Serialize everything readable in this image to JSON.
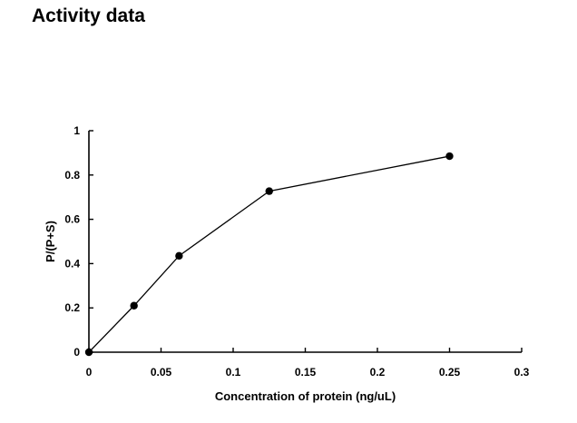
{
  "page": {
    "title": "Activity data"
  },
  "chart_data": {
    "type": "line",
    "xlabel": "Concentration of protein (ng/uL)",
    "ylabel": "P/(P+S)",
    "xlim": [
      0,
      0.3
    ],
    "ylim": [
      0,
      1
    ],
    "x_ticks": [
      "0",
      "0.05",
      "0.1",
      "0.15",
      "0.2",
      "0.25",
      "0.3"
    ],
    "y_ticks": [
      "0",
      "0.2",
      "0.4",
      "0.6",
      "0.8",
      "1"
    ],
    "grid": false,
    "legend": "none",
    "series": [
      {
        "x": [
          0,
          0.03125,
          0.0625,
          0.125,
          0.25
        ],
        "y": [
          0,
          0.21,
          0.435,
          0.727,
          0.885
        ],
        "color": "#000000",
        "marker": "circle"
      }
    ]
  }
}
